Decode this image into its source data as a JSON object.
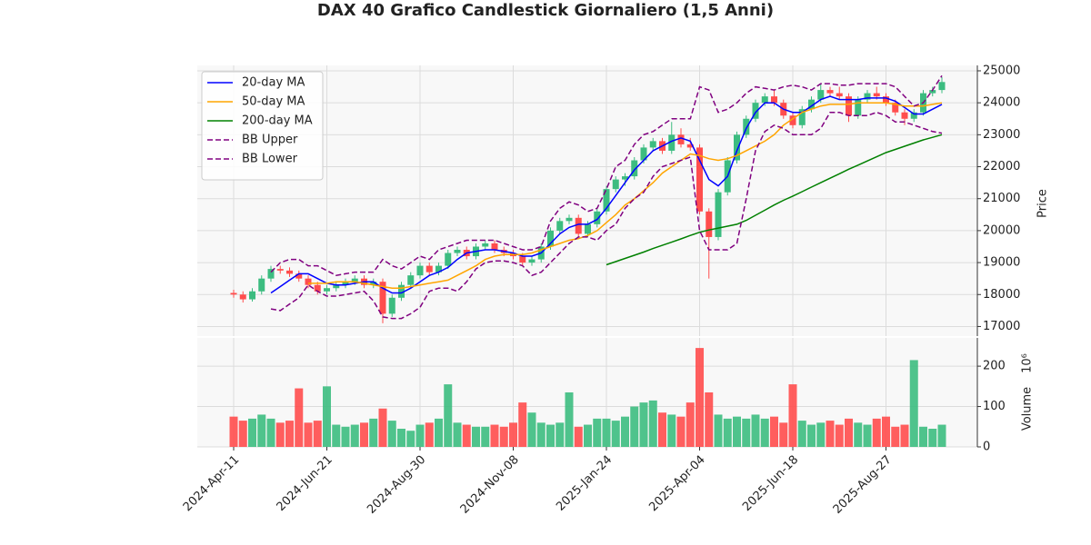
{
  "chart_data": {
    "type": "candlestick",
    "title": "DAX 40 Grafico Candlestick Giornaliero (1,5 Anni)",
    "categories": [
      "2024-Apr-11",
      null,
      null,
      null,
      null,
      null,
      null,
      null,
      null,
      null,
      "2024-Jun-21",
      null,
      null,
      null,
      null,
      null,
      null,
      null,
      null,
      null,
      "2024-Aug-30",
      null,
      null,
      null,
      null,
      null,
      null,
      null,
      null,
      null,
      "2024-Nov-08",
      null,
      null,
      null,
      null,
      null,
      null,
      null,
      null,
      null,
      "2025-Jan-24",
      null,
      null,
      null,
      null,
      null,
      null,
      null,
      null,
      null,
      "2025-Apr-04",
      null,
      null,
      null,
      null,
      null,
      null,
      null,
      null,
      null,
      "2025-Jun-18",
      null,
      null,
      null,
      null,
      null,
      null,
      null,
      null,
      null,
      "2025-Aug-27",
      null,
      null,
      null,
      null,
      null,
      null
    ],
    "open": [
      18050,
      18000,
      17850,
      18100,
      18500,
      18800,
      18750,
      18650,
      18500,
      18300,
      18100,
      18200,
      18300,
      18400,
      18500,
      18300,
      18400,
      17400,
      17900,
      18300,
      18600,
      18900,
      18700,
      18900,
      19300,
      19400,
      19200,
      19500,
      19600,
      19400,
      19300,
      19200,
      19000,
      19100,
      19500,
      20000,
      20300,
      20400,
      19900,
      20200,
      20600,
      21300,
      21600,
      21700,
      22200,
      22600,
      22800,
      22500,
      23000,
      22700,
      22600,
      20600,
      19800,
      21200,
      22200,
      23000,
      23500,
      24000,
      24200,
      24000,
      23600,
      23300,
      23800,
      24100,
      24400,
      24300,
      24200,
      23600,
      24100,
      24300,
      24200,
      24000,
      23700,
      23500,
      23700,
      24300,
      24400
    ],
    "high": [
      18150,
      18100,
      18200,
      18600,
      18900,
      18900,
      18850,
      18750,
      18600,
      18400,
      18300,
      18400,
      18500,
      18600,
      18600,
      18500,
      18500,
      18000,
      18400,
      18700,
      19000,
      19000,
      19000,
      19400,
      19500,
      19500,
      19600,
      19700,
      19700,
      19500,
      19400,
      19300,
      19200,
      19600,
      20100,
      20400,
      20500,
      20500,
      20300,
      20700,
      21400,
      21700,
      21800,
      22300,
      22700,
      22900,
      22900,
      23400,
      23200,
      22900,
      22700,
      20700,
      21300,
      22300,
      23100,
      23600,
      24100,
      24300,
      24400,
      24100,
      23700,
      23900,
      24200,
      24600,
      24500,
      24500,
      24300,
      24200,
      24400,
      24500,
      24300,
      24100,
      23800,
      23800,
      24400,
      24500,
      24800
    ],
    "low": [
      17900,
      17750,
      17780,
      18000,
      18400,
      18650,
      18550,
      18400,
      18200,
      18000,
      18000,
      18100,
      18200,
      18300,
      18200,
      18200,
      17100,
      17300,
      17800,
      18200,
      18500,
      18600,
      18600,
      18800,
      19200,
      19100,
      19100,
      19400,
      19300,
      19200,
      19100,
      18900,
      18900,
      19000,
      19400,
      19900,
      20200,
      19800,
      19800,
      20100,
      20500,
      21200,
      21400,
      21600,
      22100,
      22500,
      22400,
      22400,
      22600,
      22500,
      20500,
      18500,
      19700,
      21100,
      22100,
      22900,
      23400,
      23900,
      23900,
      23500,
      23200,
      23200,
      23700,
      24000,
      24200,
      24100,
      23400,
      23500,
      24000,
      24100,
      23900,
      23600,
      23300,
      23400,
      23600,
      24200,
      24300
    ],
    "close": [
      18000,
      17850,
      18100,
      18500,
      18800,
      18750,
      18650,
      18500,
      18300,
      18100,
      18200,
      18300,
      18400,
      18500,
      18300,
      18400,
      17400,
      17900,
      18300,
      18600,
      18900,
      18700,
      18900,
      19300,
      19400,
      19200,
      19500,
      19600,
      19400,
      19300,
      19200,
      19000,
      19100,
      19500,
      20000,
      20300,
      20400,
      19900,
      20200,
      20600,
      21300,
      21600,
      21700,
      22200,
      22600,
      22800,
      22500,
      23000,
      22700,
      22600,
      20600,
      19800,
      21200,
      22200,
      23000,
      23500,
      24000,
      24200,
      24000,
      23600,
      23300,
      23800,
      24100,
      24400,
      24300,
      24200,
      23600,
      24100,
      24300,
      24200,
      24000,
      23700,
      23500,
      23700,
      24300,
      24400,
      24650
    ],
    "volume": [
      75,
      65,
      70,
      80,
      70,
      60,
      65,
      145,
      60,
      65,
      150,
      55,
      50,
      55,
      60,
      70,
      95,
      65,
      45,
      40,
      55,
      60,
      70,
      155,
      60,
      55,
      50,
      50,
      55,
      50,
      60,
      110,
      85,
      60,
      55,
      60,
      135,
      50,
      55,
      70,
      70,
      65,
      75,
      100,
      110,
      115,
      85,
      80,
      75,
      110,
      245,
      135,
      80,
      70,
      75,
      70,
      80,
      70,
      75,
      60,
      155,
      65,
      55,
      60,
      65,
      55,
      70,
      60,
      55,
      70,
      75,
      50,
      55,
      215,
      50,
      45,
      55
    ],
    "up_color": "#3cbc80",
    "down_color": "#ff4d4d",
    "series": [
      {
        "name": "20-day MA",
        "color": "#0000ff",
        "dashed": false,
        "values": [
          null,
          null,
          null,
          null,
          18050,
          18250,
          18450,
          18650,
          18650,
          18500,
          18350,
          18300,
          18300,
          18350,
          18400,
          18400,
          18200,
          18050,
          18050,
          18200,
          18400,
          18600,
          18700,
          18850,
          19100,
          19300,
          19350,
          19400,
          19400,
          19350,
          19300,
          19200,
          19200,
          19300,
          19600,
          19900,
          20100,
          20200,
          20200,
          20350,
          20700,
          21100,
          21500,
          21900,
          22200,
          22500,
          22650,
          22800,
          22900,
          22800,
          22200,
          21600,
          21400,
          21700,
          22500,
          23200,
          23700,
          24000,
          24000,
          23800,
          23700,
          23700,
          23900,
          24100,
          24200,
          24100,
          24100,
          24100,
          24150,
          24150,
          24150,
          24050,
          23850,
          23650,
          23650,
          23800,
          23950
        ]
      },
      {
        "name": "50-day MA",
        "color": "#ffa500",
        "dashed": false,
        "values": [
          null,
          null,
          null,
          null,
          null,
          null,
          null,
          null,
          18350,
          18350,
          18350,
          18400,
          18400,
          18400,
          18350,
          18300,
          18250,
          18200,
          18200,
          18250,
          18300,
          18350,
          18400,
          18450,
          18600,
          18750,
          18900,
          19100,
          19200,
          19250,
          19250,
          19250,
          19300,
          19400,
          19500,
          19600,
          19700,
          19750,
          19850,
          20000,
          20250,
          20500,
          20800,
          21000,
          21250,
          21500,
          21800,
          22000,
          22200,
          22400,
          22350,
          22250,
          22200,
          22250,
          22350,
          22500,
          22650,
          22800,
          23000,
          23300,
          23500,
          23700,
          23800,
          23900,
          23950,
          23950,
          23950,
          24000,
          24000,
          24000,
          24000,
          23950,
          23900,
          23900,
          23900,
          23950,
          24000
        ]
      },
      {
        "name": "200-day MA",
        "color": "#008000",
        "dashed": false,
        "values": [
          null,
          null,
          null,
          null,
          null,
          null,
          null,
          null,
          null,
          null,
          null,
          null,
          null,
          null,
          null,
          null,
          null,
          null,
          null,
          null,
          null,
          null,
          null,
          null,
          null,
          null,
          null,
          null,
          null,
          null,
          null,
          null,
          null,
          null,
          null,
          null,
          null,
          null,
          null,
          null,
          18930,
          19030,
          19130,
          19230,
          19330,
          19440,
          19540,
          19640,
          19740,
          19850,
          19950,
          20020,
          20080,
          20140,
          20200,
          20320,
          20480,
          20640,
          20800,
          20950,
          21080,
          21220,
          21360,
          21500,
          21640,
          21780,
          21920,
          22050,
          22180,
          22310,
          22440,
          22540,
          22640,
          22740,
          22840,
          22920,
          23000
        ]
      },
      {
        "name": "BB Upper",
        "color": "#800080",
        "dashed": true,
        "values": [
          null,
          null,
          null,
          null,
          18700,
          19000,
          19100,
          19100,
          18900,
          18900,
          18750,
          18600,
          18650,
          18700,
          18700,
          18700,
          19100,
          18900,
          18800,
          19000,
          19200,
          19100,
          19400,
          19500,
          19600,
          19700,
          19700,
          19700,
          19700,
          19600,
          19500,
          19400,
          19400,
          19500,
          20300,
          20700,
          20900,
          20800,
          20600,
          20700,
          21300,
          22000,
          22200,
          22700,
          23000,
          23100,
          23300,
          23500,
          23500,
          23500,
          24500,
          24400,
          23700,
          23800,
          24000,
          24300,
          24500,
          24450,
          24400,
          24500,
          24550,
          24500,
          24400,
          24600,
          24600,
          24550,
          24550,
          24600,
          24600,
          24600,
          24600,
          24500,
          24200,
          23900,
          24000,
          24400,
          24850
        ]
      },
      {
        "name": "BB Lower",
        "color": "#800080",
        "dashed": true,
        "values": [
          null,
          null,
          null,
          null,
          17550,
          17500,
          17700,
          17900,
          18300,
          18100,
          17950,
          17950,
          18000,
          18050,
          18100,
          17800,
          17300,
          17250,
          17250,
          17400,
          17600,
          18100,
          18200,
          18200,
          18100,
          18400,
          18800,
          19000,
          19050,
          19050,
          19000,
          18900,
          18600,
          18700,
          19000,
          19300,
          19600,
          19800,
          19800,
          19700,
          20000,
          20200,
          20700,
          21000,
          21200,
          21700,
          22000,
          22100,
          22200,
          22300,
          20000,
          19400,
          19400,
          19400,
          19600,
          21000,
          22500,
          23100,
          23300,
          23200,
          23000,
          23000,
          23000,
          23200,
          23700,
          23700,
          23600,
          23600,
          23600,
          23700,
          23600,
          23400,
          23400,
          23300,
          23200,
          23100,
          23050
        ]
      }
    ],
    "ylabel": "Price",
    "ylim": [
      16700,
      25170
    ],
    "yticks": [
      17000,
      18000,
      19000,
      20000,
      21000,
      22000,
      23000,
      24000,
      25000
    ],
    "volume_label": "Volume",
    "volume_multiplier": "10⁶",
    "volume_ylim": [
      0,
      270
    ],
    "volume_yticks": [
      0,
      100,
      200
    ],
    "grid": true,
    "legend": "upper left"
  }
}
